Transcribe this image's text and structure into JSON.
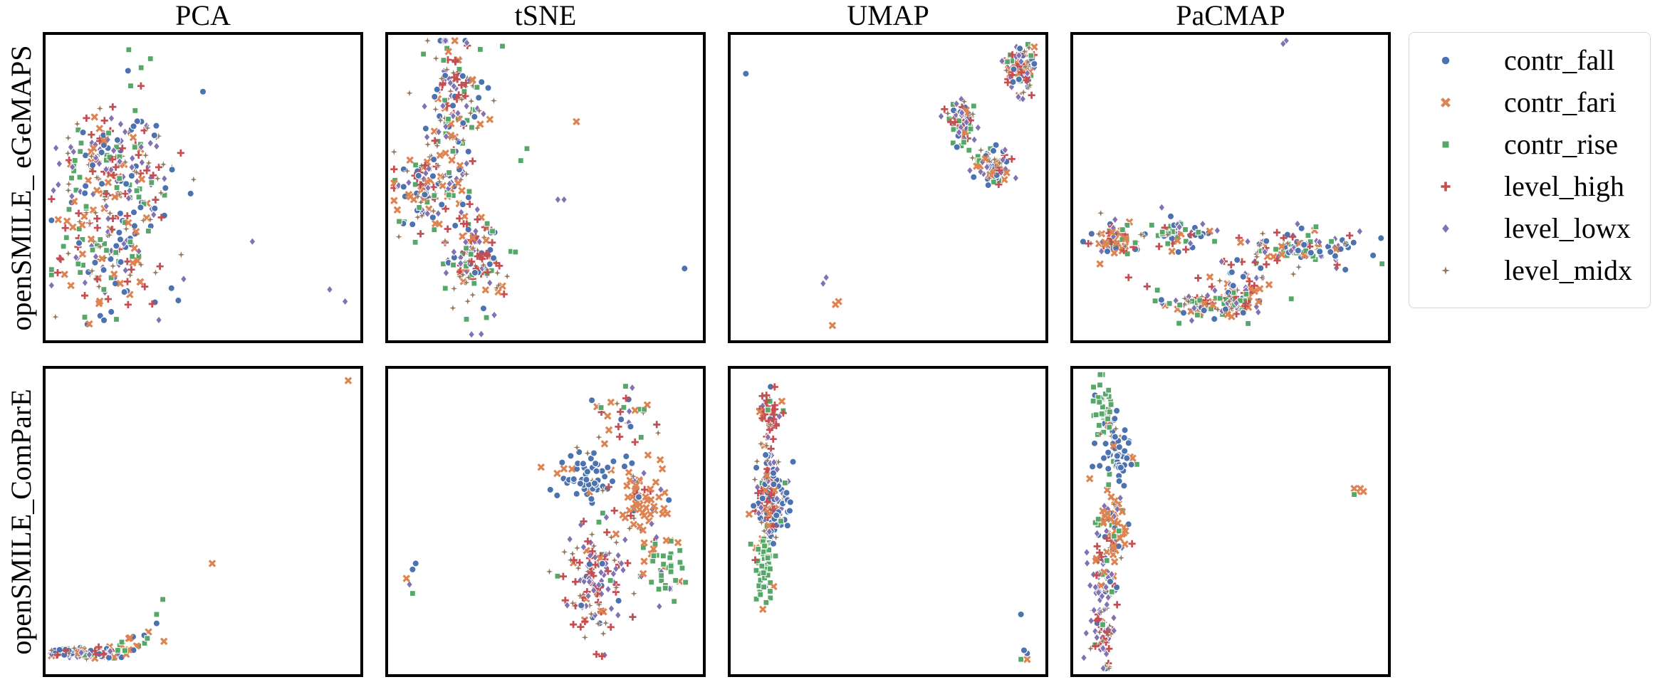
{
  "chart_data": {
    "type": "scatter",
    "columns": [
      "PCA",
      "tSNE",
      "UMAP",
      "PaCMAP"
    ],
    "rows": [
      "openSMILE_ eGeMAPS",
      "openSMILE_ComParE"
    ],
    "legend": {
      "placement": "outside-right",
      "entries": [
        {
          "name": "contr_fall",
          "marker": "circle",
          "color": "#4c72b0"
        },
        {
          "name": "contr_fari",
          "marker": "x",
          "color": "#dd8452"
        },
        {
          "name": "contr_rise",
          "marker": "square",
          "color": "#55a868"
        },
        {
          "name": "level_high",
          "marker": "plus",
          "color": "#c44e52"
        },
        {
          "name": "level_lowx",
          "marker": "diamond",
          "color": "#8172b3"
        },
        {
          "name": "level_midx",
          "marker": "star",
          "color": "#937860"
        }
      ]
    },
    "grid": false,
    "axes_ticks": false,
    "panels": [
      {
        "row": 0,
        "col": 0,
        "method": "PCA",
        "feature_set": "openSMILE_ eGeMAPS",
        "xlim": [
          0,
          100
        ],
        "ylim": [
          0,
          100
        ],
        "clusters": [
          {
            "cx": 22,
            "cy": 60,
            "sx": 9,
            "sy": 10,
            "n": 180,
            "mix": [
              1,
              1,
              1,
              1,
              1,
              1
            ]
          },
          {
            "cx": 20,
            "cy": 30,
            "sx": 9,
            "sy": 11,
            "n": 180,
            "mix": [
              1,
              1,
              1,
              1,
              1,
              1
            ]
          }
        ],
        "points": [
          {
            "x": 26,
            "y": 96,
            "c": 2
          },
          {
            "x": 33,
            "y": 93,
            "c": 2
          },
          {
            "x": 30,
            "y": 90,
            "c": 2
          },
          {
            "x": 50,
            "y": 82,
            "c": 0
          },
          {
            "x": 66,
            "y": 32,
            "c": 4
          },
          {
            "x": 91,
            "y": 16,
            "c": 4
          },
          {
            "x": 96,
            "y": 12,
            "c": 4
          },
          {
            "x": 40,
            "y": 56,
            "c": 0
          },
          {
            "x": 46,
            "y": 48,
            "c": 0
          }
        ]
      },
      {
        "row": 0,
        "col": 1,
        "method": "tSNE",
        "feature_set": "openSMILE_ eGeMAPS",
        "xlim": [
          0,
          100
        ],
        "ylim": [
          0,
          100
        ],
        "clusters": [
          {
            "cx": 21,
            "cy": 78,
            "sx": 5,
            "sy": 10,
            "n": 140,
            "mix": [
              1,
              1,
              1,
              1,
              1,
              1
            ]
          },
          {
            "cx": 12,
            "cy": 49,
            "sx": 6,
            "sy": 7,
            "n": 120,
            "mix": [
              1,
              1,
              1,
              1,
              1,
              1
            ]
          },
          {
            "cx": 28,
            "cy": 26,
            "sx": 5,
            "sy": 9,
            "n": 130,
            "mix": [
              1,
              1,
              1,
              1,
              1,
              1
            ]
          }
        ],
        "points": [
          {
            "x": 60,
            "y": 72,
            "c": 1
          },
          {
            "x": 44,
            "y": 63,
            "c": 2
          },
          {
            "x": 42,
            "y": 59,
            "c": 2
          },
          {
            "x": 54,
            "y": 46,
            "c": 4
          },
          {
            "x": 56,
            "y": 46,
            "c": 4
          },
          {
            "x": 95,
            "y": 23,
            "c": 0
          },
          {
            "x": 4,
            "y": 38,
            "c": 0
          }
        ]
      },
      {
        "row": 0,
        "col": 2,
        "method": "UMAP",
        "feature_set": "openSMILE_ eGeMAPS",
        "xlim": [
          0,
          100
        ],
        "ylim": [
          0,
          100
        ],
        "clusters": [
          {
            "cx": 93,
            "cy": 90,
            "sx": 2.2,
            "sy": 4.5,
            "n": 90,
            "mix": [
              1,
              1,
              1,
              1,
              1,
              1
            ]
          },
          {
            "cx": 74,
            "cy": 71,
            "sx": 2.8,
            "sy": 3.2,
            "n": 80,
            "mix": [
              1,
              1,
              1,
              1,
              1,
              1
            ]
          },
          {
            "cx": 84,
            "cy": 57,
            "sx": 3.2,
            "sy": 3.0,
            "n": 80,
            "mix": [
              1,
              1,
              1,
              1,
              1,
              1
            ]
          }
        ],
        "points": [
          {
            "x": 4,
            "y": 88,
            "c": 0
          },
          {
            "x": 30,
            "y": 20,
            "c": 4
          },
          {
            "x": 29,
            "y": 18,
            "c": 4
          },
          {
            "x": 34,
            "y": 12,
            "c": 1
          },
          {
            "x": 33,
            "y": 11,
            "c": 1
          },
          {
            "x": 32,
            "y": 4,
            "c": 1
          }
        ]
      },
      {
        "row": 0,
        "col": 3,
        "method": "PaCMAP",
        "feature_set": "openSMILE_ eGeMAPS",
        "xlim": [
          0,
          100
        ],
        "ylim": [
          0,
          100
        ],
        "clusters": [
          {
            "cx": 13,
            "cy": 33,
            "sx": 4.5,
            "sy": 3.2,
            "n": 70,
            "mix": [
              1,
              1,
              1,
              1,
              1,
              1
            ]
          },
          {
            "cx": 34,
            "cy": 34,
            "sx": 7,
            "sy": 2.5,
            "n": 60,
            "mix": [
              2,
              1,
              2,
              1,
              1,
              1
            ]
          },
          {
            "cx": 74,
            "cy": 30,
            "sx": 9,
            "sy": 3.0,
            "n": 110,
            "mix": [
              2,
              1,
              1,
              1,
              2,
              1
            ]
          },
          {
            "cx": 44,
            "cy": 11,
            "sx": 9,
            "sy": 2.4,
            "n": 110,
            "mix": [
              1,
              1,
              2,
              1,
              2,
              1
            ]
          },
          {
            "cx": 54,
            "cy": 19,
            "sx": 5,
            "sy": 4.5,
            "n": 45,
            "mix": [
              1,
              1,
              1,
              2,
              1,
              1
            ]
          }
        ],
        "points": [
          {
            "x": 67,
            "y": 98,
            "c": 4
          },
          {
            "x": 68,
            "y": 99,
            "c": 4
          },
          {
            "x": 17,
            "y": 20,
            "c": 3
          },
          {
            "x": 23,
            "y": 17,
            "c": 3
          },
          {
            "x": 58,
            "y": 25,
            "c": 3
          },
          {
            "x": 65,
            "y": 35,
            "c": 3
          }
        ]
      },
      {
        "row": 1,
        "col": 0,
        "method": "PCA",
        "feature_set": "openSMILE_ComParE",
        "xlim": [
          0,
          100
        ],
        "ylim": [
          0,
          100
        ],
        "clusters": [
          {
            "cx": 13,
            "cy": 6,
            "sx": 6,
            "sy": 0.8,
            "n": 100,
            "mix": [
              1,
              1,
              1,
              1,
              1,
              1
            ]
          },
          {
            "cx": 26,
            "cy": 9,
            "sx": 3.5,
            "sy": 1.6,
            "n": 14,
            "mix": [
              2,
              2,
              1,
              0,
              0,
              0
            ]
          }
        ],
        "points": [
          {
            "x": 97,
            "y": 97,
            "c": 1
          },
          {
            "x": 53,
            "y": 36,
            "c": 1
          },
          {
            "x": 37,
            "y": 24,
            "c": 2
          },
          {
            "x": 35,
            "y": 19,
            "c": 2
          },
          {
            "x": 35,
            "y": 16,
            "c": 0
          },
          {
            "x": 31,
            "y": 12,
            "c": 0
          },
          {
            "x": 32,
            "y": 11,
            "c": 2
          },
          {
            "x": 26,
            "y": 11,
            "c": 1
          }
        ]
      },
      {
        "row": 1,
        "col": 1,
        "method": "tSNE",
        "feature_set": "openSMILE_ComParE",
        "xlim": [
          0,
          100
        ],
        "ylim": [
          0,
          100
        ],
        "clusters": [
          {
            "cx": 63,
            "cy": 66,
            "sx": 4.5,
            "sy": 4.5,
            "n": 60,
            "mix": [
              10,
              1,
              0,
              0,
              0,
              1
            ]
          },
          {
            "cx": 81,
            "cy": 56,
            "sx": 4.5,
            "sy": 7,
            "n": 70,
            "mix": [
              1,
              10,
              0,
              1,
              1,
              1
            ]
          },
          {
            "cx": 66,
            "cy": 30,
            "sx": 6,
            "sy": 10,
            "n": 140,
            "mix": [
              1,
              1,
              1,
              5,
              5,
              3
            ]
          },
          {
            "cx": 88,
            "cy": 33,
            "sx": 3.5,
            "sy": 6,
            "n": 40,
            "mix": [
              0,
              1,
              10,
              0,
              1,
              0
            ]
          },
          {
            "cx": 76,
            "cy": 86,
            "sx": 6,
            "sy": 6,
            "n": 30,
            "mix": [
              1,
              2,
              2,
              1,
              1,
              1
            ]
          }
        ],
        "points": [
          {
            "x": 8,
            "y": 36,
            "c": 0
          },
          {
            "x": 7,
            "y": 34,
            "c": 0
          },
          {
            "x": 5,
            "y": 31,
            "c": 1
          },
          {
            "x": 6,
            "y": 29,
            "c": 4
          },
          {
            "x": 7,
            "y": 26,
            "c": 2
          }
        ]
      },
      {
        "row": 1,
        "col": 2,
        "method": "UMAP",
        "feature_set": "openSMILE_ComParE",
        "xlim": [
          0,
          100
        ],
        "ylim": [
          0,
          100
        ],
        "clusters": [
          {
            "cx": 12,
            "cy": 84,
            "sx": 1.8,
            "sy": 6,
            "n": 50,
            "mix": [
              1,
              1,
              1,
              5,
              1,
              1
            ]
          },
          {
            "cx": 14,
            "cy": 58,
            "sx": 2.2,
            "sy": 6,
            "n": 70,
            "mix": [
              10,
              2,
              1,
              1,
              1,
              1
            ]
          },
          {
            "cx": 11,
            "cy": 56,
            "sx": 1.8,
            "sy": 9,
            "n": 90,
            "mix": [
              1,
              1,
              1,
              4,
              3,
              3
            ]
          },
          {
            "cx": 10,
            "cy": 35,
            "sx": 1.5,
            "sy": 6,
            "n": 50,
            "mix": [
              0,
              1,
              10,
              0,
              0,
              0
            ]
          }
        ],
        "points": [
          {
            "x": 93,
            "y": 19,
            "c": 0
          },
          {
            "x": 94,
            "y": 7,
            "c": 0
          },
          {
            "x": 95,
            "y": 6,
            "c": 0
          },
          {
            "x": 93,
            "y": 4,
            "c": 2
          },
          {
            "x": 95,
            "y": 4,
            "c": 1
          }
        ]
      },
      {
        "row": 1,
        "col": 3,
        "method": "PaCMAP",
        "feature_set": "openSMILE_ComParE",
        "xlim": [
          0,
          100
        ],
        "ylim": [
          0,
          100
        ],
        "clusters": [
          {
            "cx": 9,
            "cy": 88,
            "sx": 1.8,
            "sy": 4.5,
            "n": 35,
            "mix": [
              1,
              0,
              10,
              0,
              0,
              0
            ]
          },
          {
            "cx": 13,
            "cy": 73,
            "sx": 2.3,
            "sy": 5,
            "n": 55,
            "mix": [
              10,
              1,
              1,
              0,
              0,
              1
            ]
          },
          {
            "cx": 12,
            "cy": 48,
            "sx": 2.3,
            "sy": 7,
            "n": 70,
            "mix": [
              1,
              8,
              1,
              1,
              1,
              1
            ]
          },
          {
            "cx": 9,
            "cy": 30,
            "sx": 2.4,
            "sy": 7,
            "n": 70,
            "mix": [
              1,
              1,
              1,
              3,
              5,
              1
            ]
          },
          {
            "cx": 9,
            "cy": 12,
            "sx": 2.0,
            "sy": 5,
            "n": 50,
            "mix": [
              1,
              1,
              1,
              3,
              3,
              4
            ]
          }
        ],
        "points": [
          {
            "x": 90,
            "y": 61,
            "c": 1
          },
          {
            "x": 91,
            "y": 60,
            "c": 1
          },
          {
            "x": 92,
            "y": 61,
            "c": 1
          },
          {
            "x": 93,
            "y": 60,
            "c": 1
          },
          {
            "x": 90,
            "y": 59,
            "c": 2
          }
        ]
      }
    ]
  }
}
